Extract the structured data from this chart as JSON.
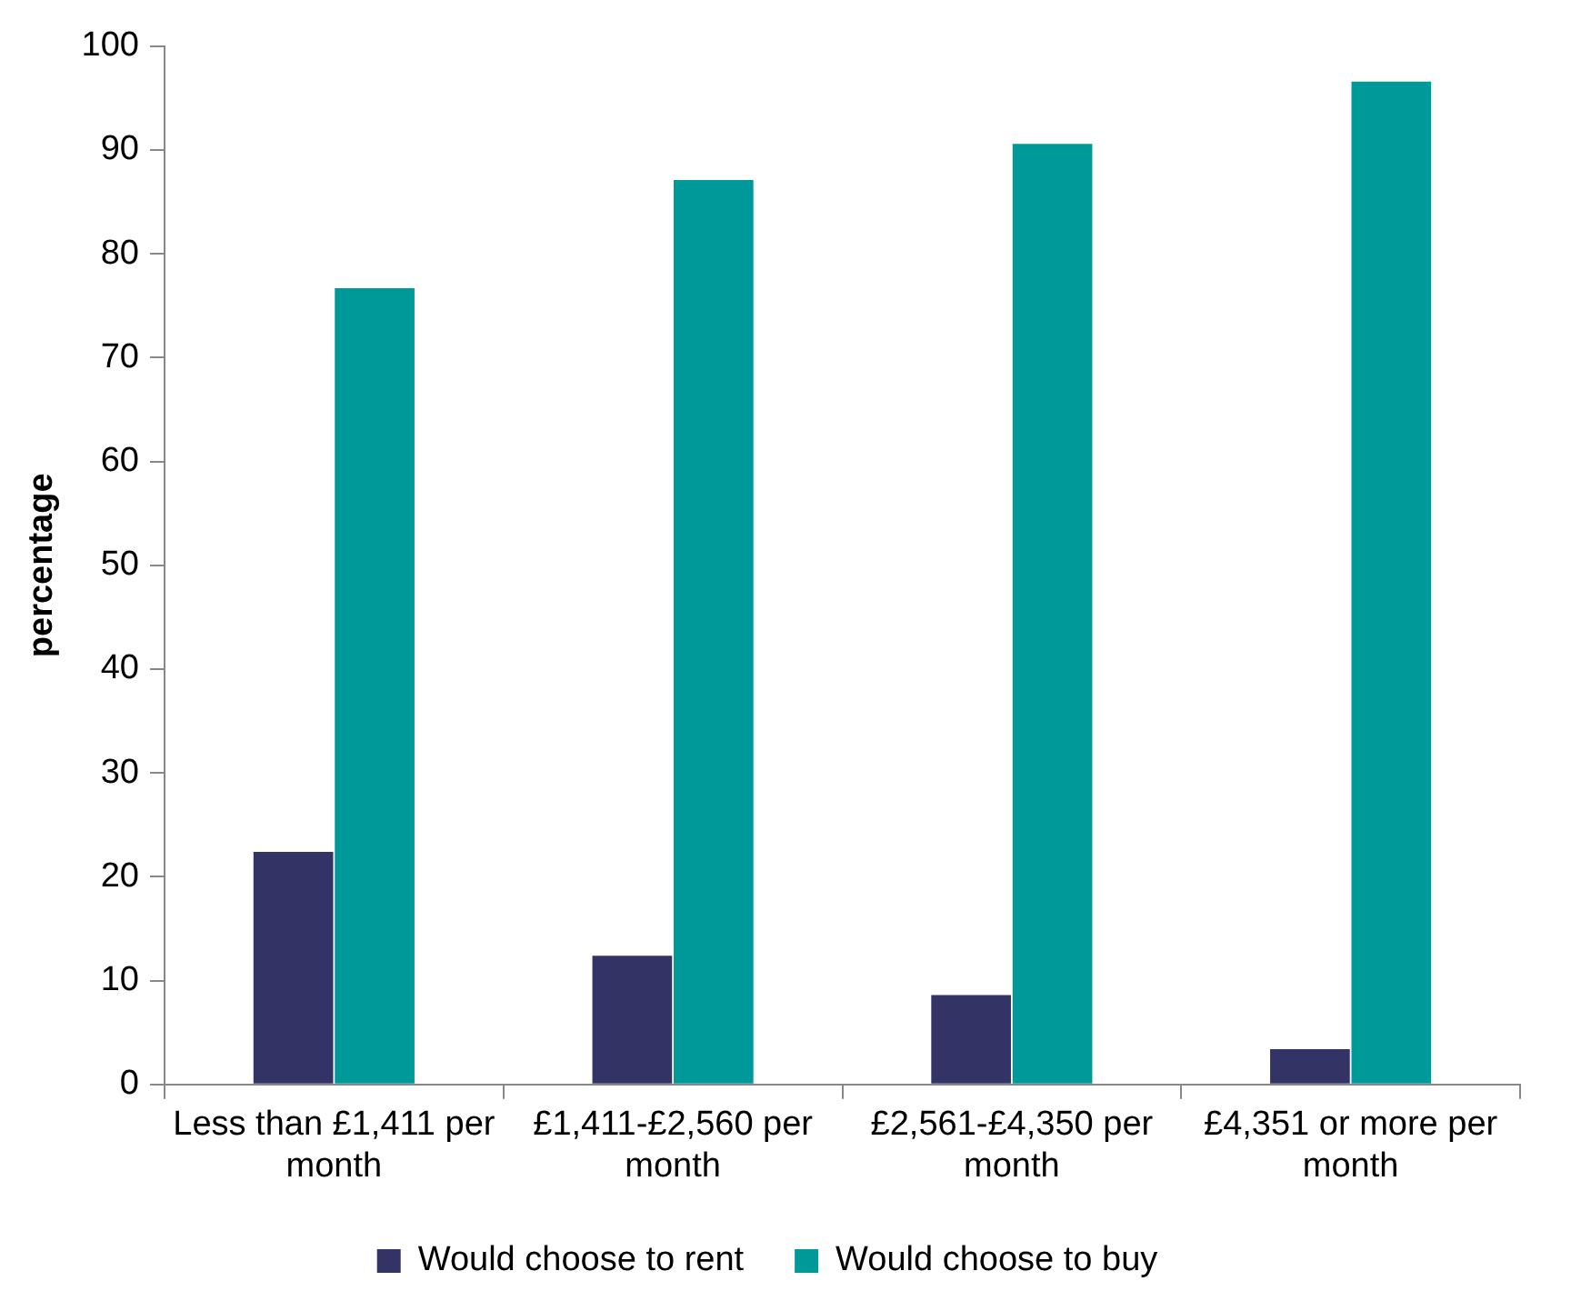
{
  "chart_data": {
    "type": "bar",
    "ylabel": "percentage",
    "categories": [
      "Less than £1,411 per month",
      "£1,411-£2,560 per month",
      "£2,561-£4,350 per month",
      "£4,351 or more per month"
    ],
    "series": [
      {
        "name": "Would choose to rent",
        "color": "#333366",
        "values": [
          22.4,
          12.4,
          8.6,
          3.4
        ]
      },
      {
        "name": "Would choose to buy",
        "color": "#009999",
        "values": [
          76.7,
          87.1,
          90.6,
          96.6
        ]
      }
    ],
    "ylim": [
      0,
      100
    ],
    "yticks": [
      0,
      10,
      20,
      30,
      40,
      50,
      60,
      70,
      80,
      90,
      100
    ],
    "grid": false,
    "legend": "bottom"
  }
}
